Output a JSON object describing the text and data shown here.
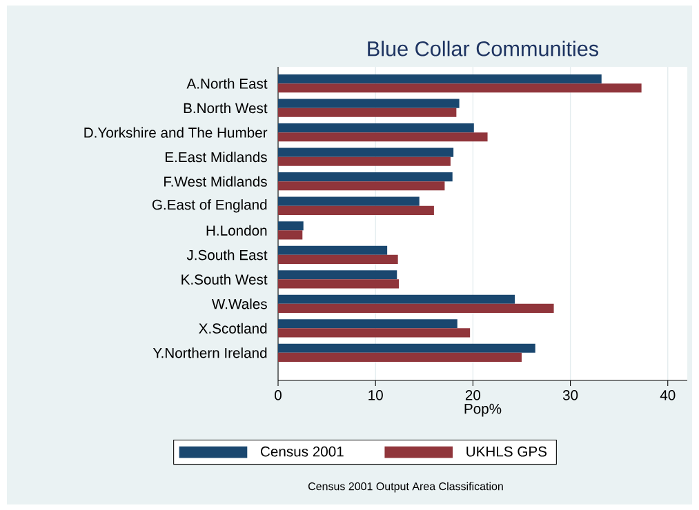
{
  "chart_data": {
    "type": "bar",
    "orientation": "horizontal",
    "title": "Blue Collar Communities",
    "xlabel": "Pop%",
    "categories": [
      "A.North East",
      "B.North West",
      "D.Yorkshire and The Humber",
      "E.East Midlands",
      "F.West Midlands",
      "G.East of England",
      "H.London",
      "J.South East",
      "K.South West",
      "W.Wales",
      "X.Scotland",
      "Y.Northern Ireland"
    ],
    "series": [
      {
        "name": "Census 2001",
        "color": "#1a476f",
        "values": [
          33.2,
          18.6,
          20.1,
          18.0,
          17.9,
          14.5,
          2.6,
          11.2,
          12.2,
          24.3,
          18.4,
          26.4
        ]
      },
      {
        "name": "UKHLS GPS",
        "color": "#90353b",
        "values": [
          37.3,
          18.3,
          21.5,
          17.7,
          17.1,
          16.0,
          2.5,
          12.3,
          12.4,
          28.3,
          19.7,
          25.0
        ]
      }
    ],
    "xlim": [
      0,
      42
    ],
    "xticks": [
      0,
      10,
      20,
      30,
      40
    ],
    "grid": "x",
    "legend": "bottom",
    "annotations": [
      "Census 2001 Output Area Classification"
    ]
  }
}
